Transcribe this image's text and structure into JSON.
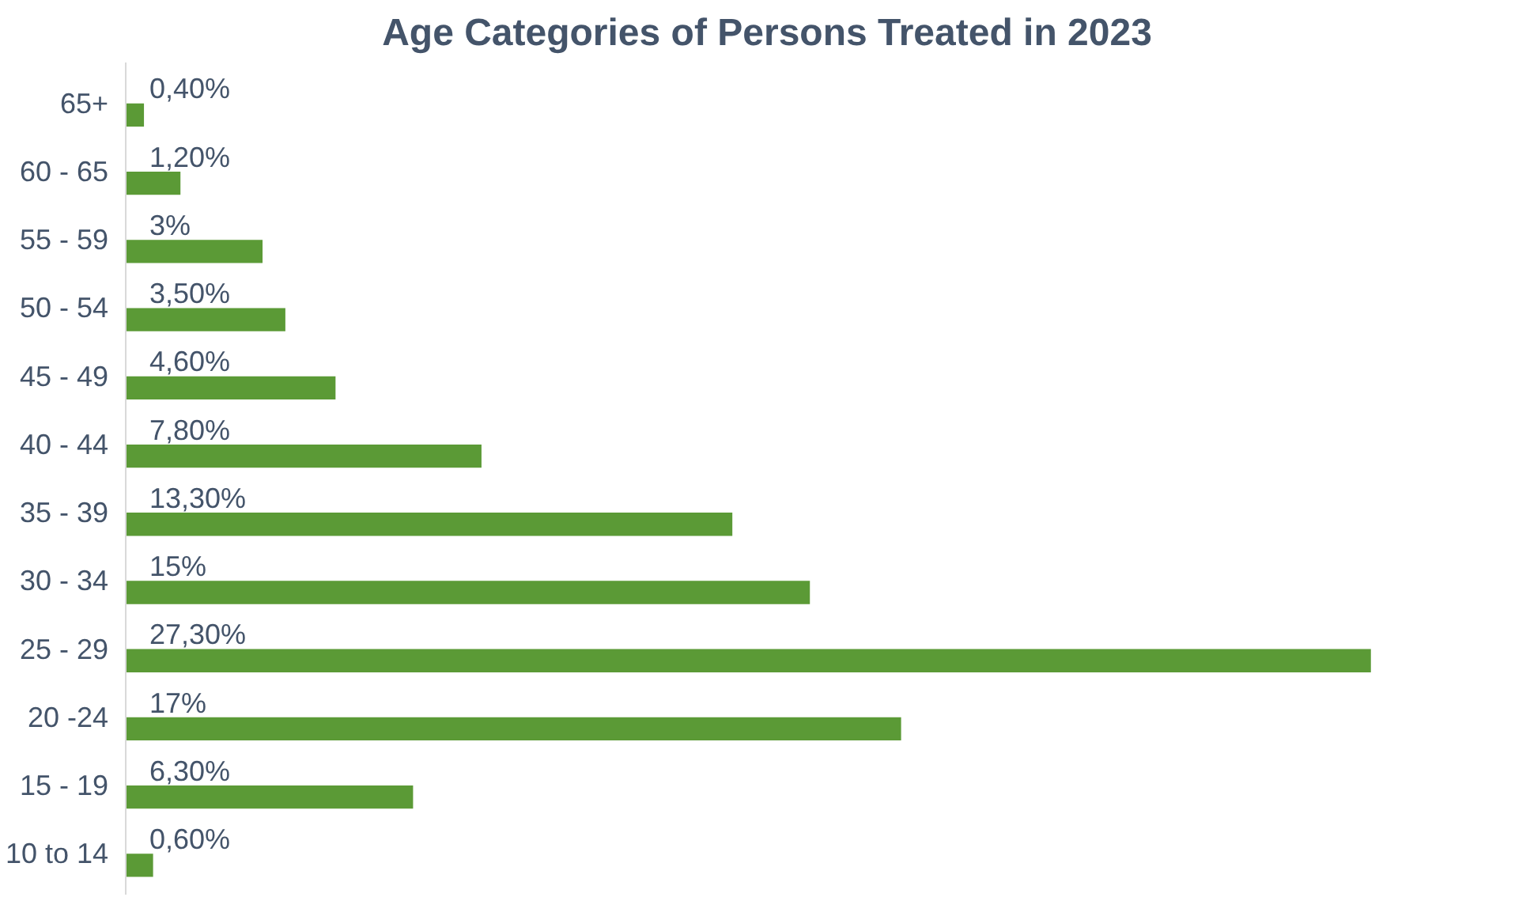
{
  "chart_data": {
    "type": "bar",
    "orientation": "horizontal",
    "title": "Age Categories of Persons Treated in 2023",
    "categories": [
      "65+",
      "60 - 65",
      "55 - 59",
      "50 - 54",
      "45 - 49",
      "40 - 44",
      "35 - 39",
      "30 - 34",
      "25 - 29",
      "20 -24",
      "15 - 19",
      "10 to 14"
    ],
    "values": [
      0.4,
      1.2,
      3,
      3.5,
      4.6,
      7.8,
      13.3,
      15,
      27.3,
      17,
      6.3,
      0.6
    ],
    "value_labels": [
      "0,40%",
      "1,20%",
      "3%",
      "3,50%",
      "4,60%",
      "7,80%",
      "13,30%",
      "15%",
      "27,30%",
      "17%",
      "6,30%",
      "0,60%"
    ],
    "color": "#5b9a36",
    "grid": false
  }
}
